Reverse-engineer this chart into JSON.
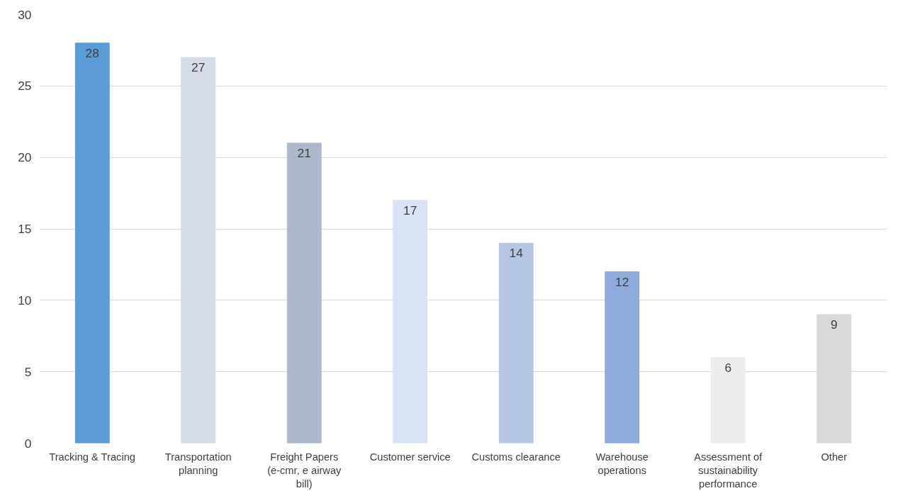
{
  "chart_data": {
    "type": "bar",
    "categories": [
      "Tracking & Tracing",
      "Transportation planning",
      "Freight Papers (e-cmr, e airway bill)",
      "Customer service",
      "Customs clearance",
      "Warehouse operations",
      "Assessment of sustainability performance",
      "Other"
    ],
    "values": [
      28,
      27,
      21,
      17,
      14,
      12,
      6,
      9
    ],
    "colors": [
      "#5b9bd5",
      "#d6dce5",
      "#adb9ca",
      "#dae3f3",
      "#b4c7e7",
      "#8faadc",
      "#ededed",
      "#d9d9d9"
    ],
    "ylim": [
      0,
      30
    ],
    "yticks": [
      0,
      5,
      10,
      15,
      20,
      25,
      30
    ],
    "grid": "y",
    "data_labels": true
  }
}
